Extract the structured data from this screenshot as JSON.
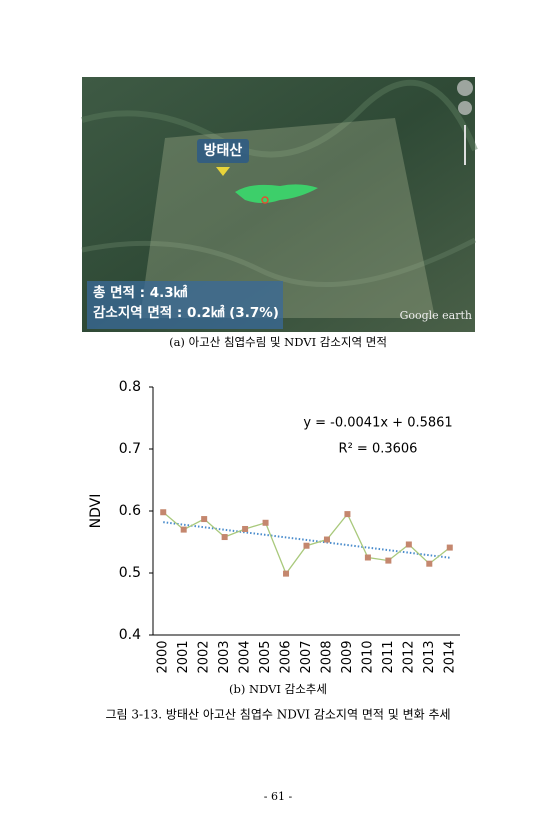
{
  "figure_a": {
    "place_label": "방태산",
    "total_area": "총 면적 : 4.3㎢",
    "decrease_area": "감소지역 면적 : 0.2㎢ (3.7%)",
    "watermark": "Google earth",
    "caption": "(a) 아고산 침엽수림 및 NDVI 감소지역 면적"
  },
  "chart_data": {
    "type": "line",
    "ylabel": "NDVI",
    "categories": [
      "2000",
      "2001",
      "2002",
      "2003",
      "2004",
      "2005",
      "2006",
      "2007",
      "2008",
      "2009",
      "2010",
      "2011",
      "2012",
      "2013",
      "2014"
    ],
    "series": [
      {
        "name": "NDVI",
        "color": "#a9c97c",
        "marker_color": "#c4876e",
        "values": [
          0.598,
          0.57,
          0.587,
          0.558,
          0.571,
          0.581,
          0.499,
          0.544,
          0.554,
          0.595,
          0.525,
          0.52,
          0.546,
          0.515,
          0.541
        ]
      }
    ],
    "trendline": {
      "slope": -0.0041,
      "intercept": 0.5861,
      "color": "#4a8ccc",
      "equation": "y = -0.0041x + 0.5861",
      "r2": "R² = 0.3606"
    },
    "ylim": [
      0.4,
      0.8
    ],
    "yticks": [
      {
        "value": 0.4,
        "label": "0.4"
      },
      {
        "value": 0.5,
        "label": "0.5"
      },
      {
        "value": 0.6,
        "label": "0.6"
      },
      {
        "value": 0.7,
        "label": "0.7"
      },
      {
        "value": 0.8,
        "label": "0.8"
      }
    ],
    "caption": "(b) NDVI 감소추세"
  },
  "figure_caption": "그림 3-13. 방태산 아고산 침엽수 NDVI 감소지역 면적 및 변화 추세",
  "page_number": "- 61 -"
}
